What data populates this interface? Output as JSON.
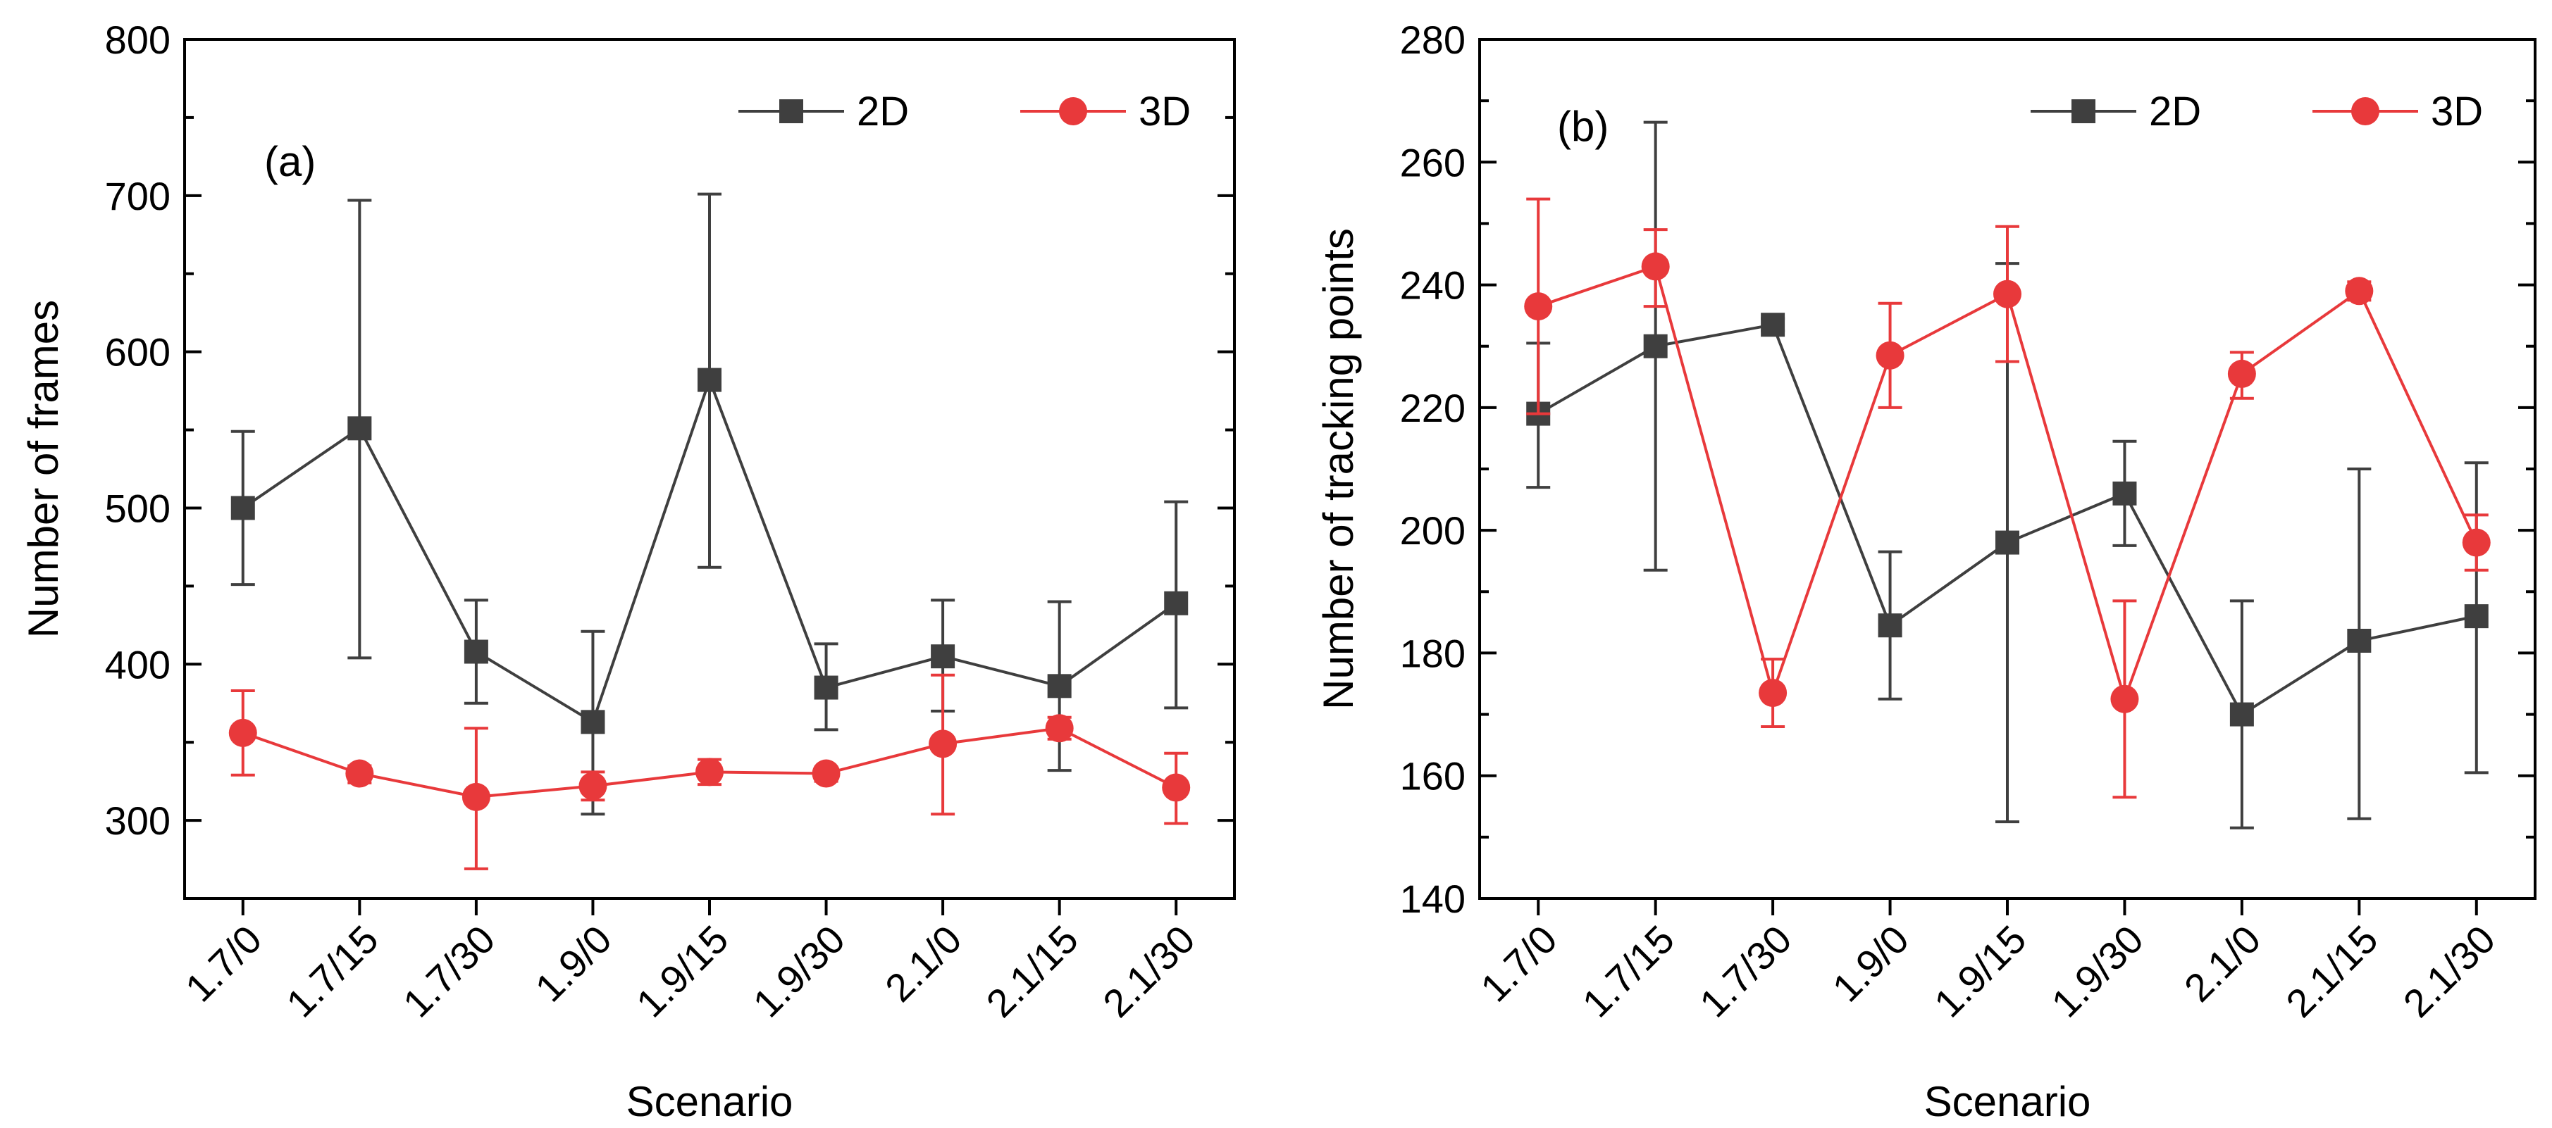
{
  "chart_data": [
    {
      "type": "line",
      "panel_label": "(a)",
      "xlabel": "Scenario",
      "ylabel": "Number of frames",
      "categories": [
        "1.7/0",
        "1.7/15",
        "1.7/30",
        "1.9/0",
        "1.9/15",
        "1.9/30",
        "2.1/0",
        "2.1/15",
        "2.1/30"
      ],
      "ylim": [
        250,
        800
      ],
      "yticks": [
        300,
        400,
        500,
        600,
        700,
        800
      ],
      "ytick_labels": [
        "300",
        "400",
        "500",
        "600",
        "700",
        "800"
      ],
      "grid": false,
      "legend_position": "top-right",
      "series": [
        {
          "name": "2D",
          "color": "#3f3f3f",
          "marker": "square",
          "values": [
            500,
            551,
            408,
            363,
            582,
            385,
            405,
            386,
            439
          ],
          "err_low": [
            451,
            404,
            375,
            304,
            462,
            358,
            370,
            332,
            372
          ],
          "err_high": [
            549,
            697,
            441,
            421,
            701,
            413,
            441,
            440,
            504
          ]
        },
        {
          "name": "3D",
          "color": "#e8393b",
          "marker": "circle",
          "values": [
            356,
            330,
            315,
            322,
            331,
            330,
            349,
            359,
            321
          ],
          "err_low": [
            329,
            324,
            269,
            313,
            323,
            325,
            304,
            352,
            298
          ],
          "err_high": [
            383,
            335,
            359,
            331,
            339,
            334,
            393,
            366,
            343
          ]
        }
      ]
    },
    {
      "type": "line",
      "panel_label": "(b)",
      "xlabel": "Scenario",
      "ylabel": "Number of tracking points",
      "categories": [
        "1.7/0",
        "1.7/15",
        "1.7/30",
        "1.9/0",
        "1.9/15",
        "1.9/30",
        "2.1/0",
        "2.1/15",
        "2.1/30"
      ],
      "ylim": [
        140,
        280
      ],
      "yticks": [
        140,
        160,
        180,
        200,
        220,
        240,
        260,
        280
      ],
      "ytick_labels": [
        "140",
        "160",
        "180",
        "200",
        "220",
        "240",
        "260",
        "280"
      ],
      "grid": false,
      "legend_position": "top-right",
      "series": [
        {
          "name": "2D",
          "color": "#3f3f3f",
          "marker": "square",
          "values": [
            219,
            230,
            233.5,
            184.5,
            198,
            206,
            170,
            182,
            186
          ],
          "err_low": [
            207,
            193.5,
            232.5,
            172.5,
            152.5,
            197.5,
            151.5,
            153,
            160.5
          ],
          "err_high": [
            230.5,
            266.5,
            234.5,
            196.5,
            243.5,
            214.5,
            188.5,
            210,
            211
          ]
        },
        {
          "name": "3D",
          "color": "#e8393b",
          "marker": "circle",
          "values": [
            236.5,
            243,
            173.5,
            228.5,
            238.5,
            172.5,
            225.5,
            239,
            198
          ],
          "err_low": [
            219,
            236.5,
            168,
            220,
            227.5,
            156.5,
            221.5,
            237.5,
            193.5
          ],
          "err_high": [
            254,
            249,
            179,
            237,
            249.5,
            188.5,
            229,
            240.5,
            202.5
          ]
        }
      ]
    }
  ]
}
